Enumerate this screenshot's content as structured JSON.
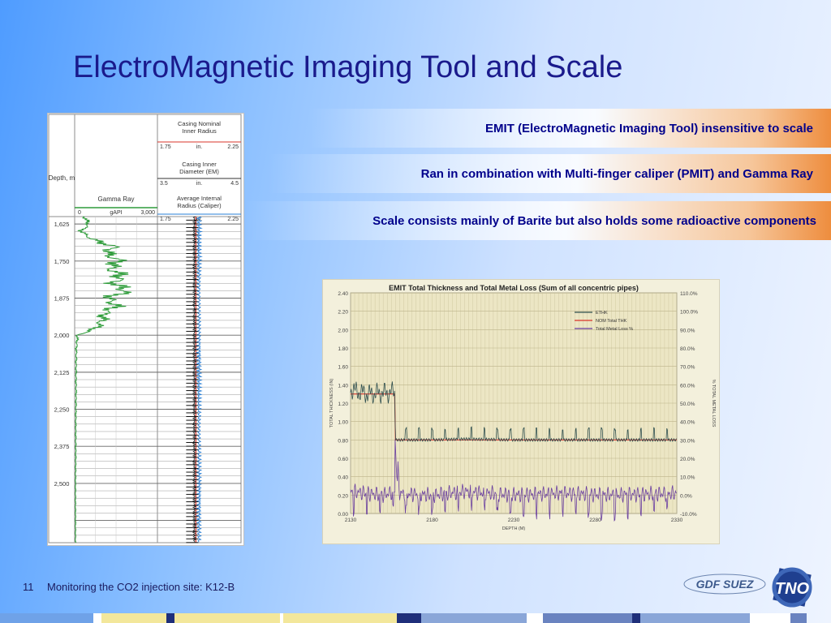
{
  "slide": {
    "title": "ElectroMagnetic Imaging Tool and Scale",
    "bullets": [
      "EMIT (ElectroMagnetic Imaging Tool) insensitive to scale",
      "Ran in combination with Multi-finger caliper (PMIT) and Gamma Ray",
      "Scale consists mainly of Barite but also holds some radioactive components"
    ],
    "page_number": "11",
    "footer": "Monitoring the CO2 injection site: K12-B",
    "logos": [
      "GDF SUEZ",
      "TNO"
    ]
  },
  "colors": {
    "title": "#1a1a8c",
    "bullet_text": "#00008b",
    "bullet_accent": "#ee8d3e",
    "gamma_trace": "#2e9c3a",
    "caliper_trace": "#2a7fd4",
    "emit_series": "#2f4f4f",
    "nom_series": "#d9342b",
    "metal_loss_series": "#6a3fa0"
  },
  "chart_data": [
    {
      "type": "line",
      "name": "well-log",
      "depth_label": "Depth, m",
      "depth_ticks": [
        "1,625",
        "1,750",
        "1,875",
        "2,000",
        "2,125",
        "2,250",
        "2,375",
        "2,500"
      ],
      "depth_range": [
        1600,
        2700
      ],
      "gamma_track": {
        "label": "Gamma Ray",
        "unit": "gAPI",
        "min_label": "0",
        "max_label": "3,000",
        "range": [
          0,
          3000
        ],
        "depth": [
          1600,
          1625,
          1650,
          1675,
          1700,
          1725,
          1750,
          1775,
          1800,
          1825,
          1850,
          1875,
          1900,
          1925,
          1950,
          1975,
          1990,
          2000,
          2050,
          2125,
          2200,
          2300,
          2400,
          2500,
          2600,
          2700
        ],
        "value": [
          350,
          500,
          250,
          600,
          1400,
          1200,
          1600,
          1300,
          1700,
          1400,
          1900,
          1200,
          1500,
          1100,
          1000,
          800,
          400,
          100,
          60,
          50,
          50,
          40,
          40,
          30,
          30,
          30
        ]
      },
      "casing_track": {
        "headers": [
          "Casing Nominal Inner Radius",
          "Casing Inner Diameter (EM)",
          "Average Internal Radius (Caliper)"
        ],
        "scales": [
          {
            "min": "1.75",
            "unit": "in.",
            "max": "2.25"
          },
          {
            "min": "3.5",
            "unit": "in.",
            "max": "4.5"
          },
          {
            "min": "1.75",
            "unit": "in.",
            "max": "2.25"
          }
        ],
        "nominal_radius": 2.0
      }
    },
    {
      "type": "line",
      "title": "EMIT Total Thickness and Total Metal Loss (Sum of all concentric pipes)",
      "xlabel": "DEPTH (M)",
      "ylabel": "TOTAL THICKNESS (IN)",
      "y2label": "% TOTAL METAL LOSS",
      "x_ticks": [
        "2130",
        "2180",
        "2230",
        "2280",
        "2330"
      ],
      "xlim": [
        2130,
        2330
      ],
      "y_ticks": [
        "0.00",
        "0.20",
        "0.40",
        "0.60",
        "0.80",
        "1.00",
        "1.20",
        "1.40",
        "1.60",
        "1.80",
        "2.00",
        "2.20",
        "2.40"
      ],
      "ylim": [
        0,
        2.4
      ],
      "y2_ticks": [
        "-10.0%",
        "0.0%",
        "10.0%",
        "20.0%",
        "30.0%",
        "40.0%",
        "50.0%",
        "60.0%",
        "70.0%",
        "80.0%",
        "90.0%",
        "100.0%",
        "110.0%"
      ],
      "y2lim": [
        -10,
        110
      ],
      "grid": true,
      "legend": "top-right",
      "series": [
        {
          "name": "ETHK",
          "x": [
            2130,
            2140,
            2157,
            2157.5,
            2170,
            2180,
            2200,
            2230,
            2260,
            2290,
            2330
          ],
          "values": [
            1.35,
            1.3,
            1.32,
            0.8,
            0.8,
            0.8,
            0.81,
            0.8,
            0.8,
            0.8,
            0.8
          ]
        },
        {
          "name": "NOM Total THK",
          "x": [
            2130,
            2157,
            2157.5,
            2330
          ],
          "values": [
            1.3,
            1.3,
            0.8,
            0.8
          ]
        },
        {
          "name": "Total Metal Loss %",
          "x": [
            2130,
            2150,
            2157,
            2157.5,
            2160,
            2180,
            2200,
            2230,
            2260,
            2290,
            2330
          ],
          "values": [
            2,
            0,
            2,
            35,
            1,
            0,
            2,
            0,
            1,
            0,
            1
          ]
        }
      ]
    }
  ]
}
